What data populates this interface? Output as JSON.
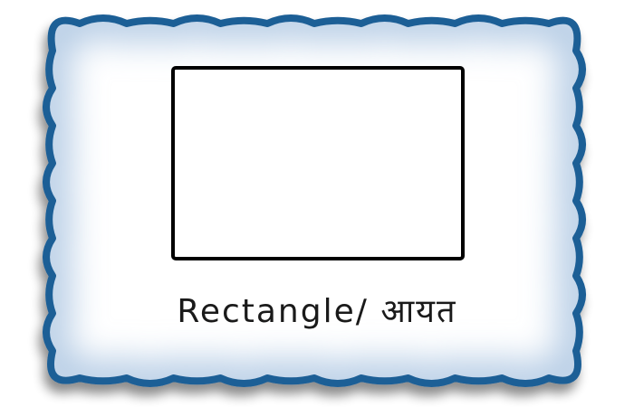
{
  "card": {
    "caption_english": "Rectangle",
    "caption_separator": "/",
    "caption_hindi": "आयत"
  },
  "colors": {
    "frame_border": "#1f5e96",
    "frame_glow": "#b9cfe6",
    "shape_outline": "#000000",
    "background": "#ffffff"
  },
  "icons": {
    "frame": "ornate-scalloped-frame",
    "shape": "rectangle-outline"
  }
}
